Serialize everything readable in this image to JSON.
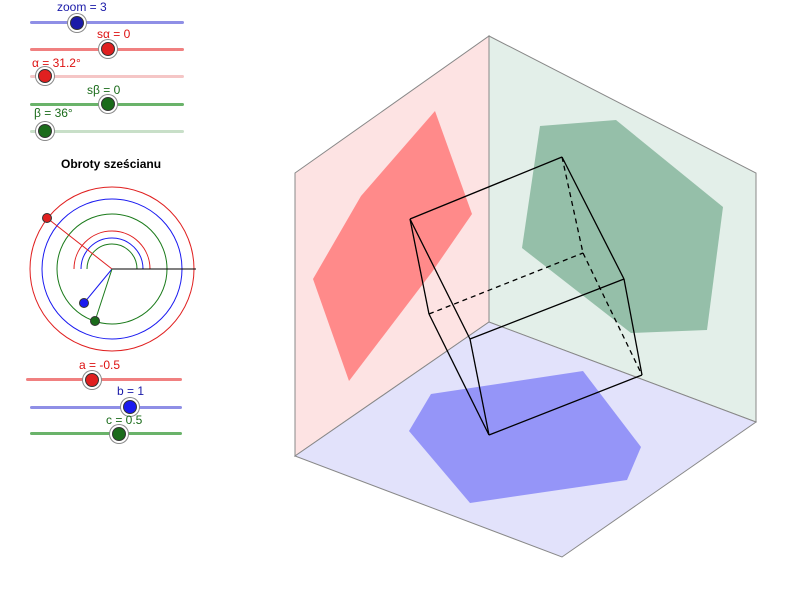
{
  "sliders": {
    "zoom": {
      "label": "zoom = 3",
      "value": 3,
      "color": "#1a1aa8",
      "track": "#8f8fe6"
    },
    "salpha": {
      "label": "sα = 0",
      "value": 0,
      "color": "#d11",
      "track": "#f08080"
    },
    "alpha": {
      "label": "α = 31.2°",
      "value": 31.2,
      "color": "#d11",
      "track": "#f5c6c6"
    },
    "sbeta": {
      "label": "sβ = 0",
      "value": 0,
      "color": "#1a6b1a",
      "track": "#6ab36a"
    },
    "beta": {
      "label": "β = 36°",
      "value": 36,
      "color": "#1a6b1a",
      "track": "#c8dfc8"
    },
    "a": {
      "label": "a = -0.5",
      "value": -0.5,
      "color": "#d11",
      "track": "#f08080"
    },
    "b": {
      "label": "b = 1",
      "value": 1,
      "color": "#1a1aa8",
      "track": "#8f8fe6"
    },
    "c": {
      "label": "c = 0.5",
      "value": 0.5,
      "color": "#1a6b1a",
      "track": "#6ab36a"
    }
  },
  "panel_title": "Obroty sześcianu",
  "colors": {
    "red_wall": "#fde3e3",
    "red_shadow": "#ff8a8a",
    "green_wall": "#e3efe9",
    "green_shadow": "#95bfa9",
    "floor": "#e2e2fb",
    "floor_shadow": "#9595f8"
  }
}
